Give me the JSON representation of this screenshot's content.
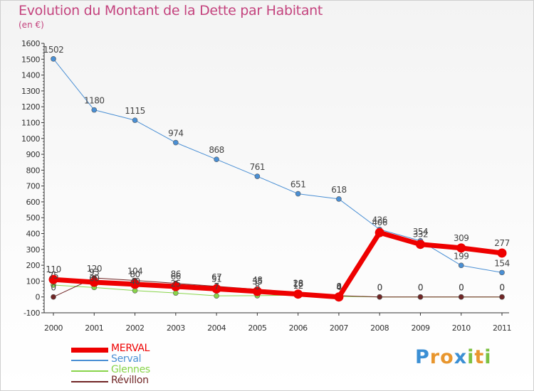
{
  "title": "Evolution du Montant de la Dette par Habitant",
  "subtitle": "(en €)",
  "chart_data": {
    "type": "line",
    "title": "Evolution du Montant de la Dette par Habitant",
    "subtitle": "(en €)",
    "x": [
      "2000",
      "2001",
      "2002",
      "2003",
      "2004",
      "2005",
      "2006",
      "2007",
      "2008",
      "2009",
      "2010",
      "2011"
    ],
    "ylim": [
      -100,
      1600
    ],
    "yticks": [
      -100,
      0,
      100,
      200,
      300,
      400,
      500,
      600,
      700,
      800,
      900,
      1000,
      1100,
      1200,
      1300,
      1400,
      1500,
      1600
    ],
    "grid": false,
    "legend_position": "bottom-left",
    "series": [
      {
        "name": "MERVAL",
        "color": "#ee0000",
        "values": [
          110,
          93,
          80,
          66,
          51,
          35,
          18,
          0,
          406,
          332,
          309,
          277
        ]
      },
      {
        "name": "Serval",
        "color": "#4a8fd4",
        "values": [
          1502,
          1180,
          1115,
          974,
          868,
          761,
          651,
          618,
          426,
          354,
          199,
          154
        ]
      },
      {
        "name": "Glennes",
        "color": "#88d44a",
        "values": [
          75,
          60,
          40,
          25,
          7,
          8,
          12,
          4,
          0,
          0,
          0,
          0
        ]
      },
      {
        "name": "Révillon",
        "color": "#702525",
        "values": [
          0,
          120,
          104,
          86,
          67,
          48,
          28,
          8,
          0,
          0,
          0,
          0
        ]
      }
    ]
  },
  "legend": [
    {
      "label": "MERVAL",
      "color": "#ee0000"
    },
    {
      "label": "Serval",
      "color": "#4a8fd4"
    },
    {
      "label": "Glennes",
      "color": "#88d44a"
    },
    {
      "label": "Révillon",
      "color": "#702525"
    }
  ],
  "logo": {
    "letters": [
      "P",
      "r",
      "o",
      "x",
      "i",
      "t",
      "i"
    ],
    "colors": [
      "#3b8fd4",
      "#e8962e",
      "#e8962e",
      "#3b8fd4",
      "#7cc142",
      "#e8962e",
      "#7cc142"
    ]
  }
}
